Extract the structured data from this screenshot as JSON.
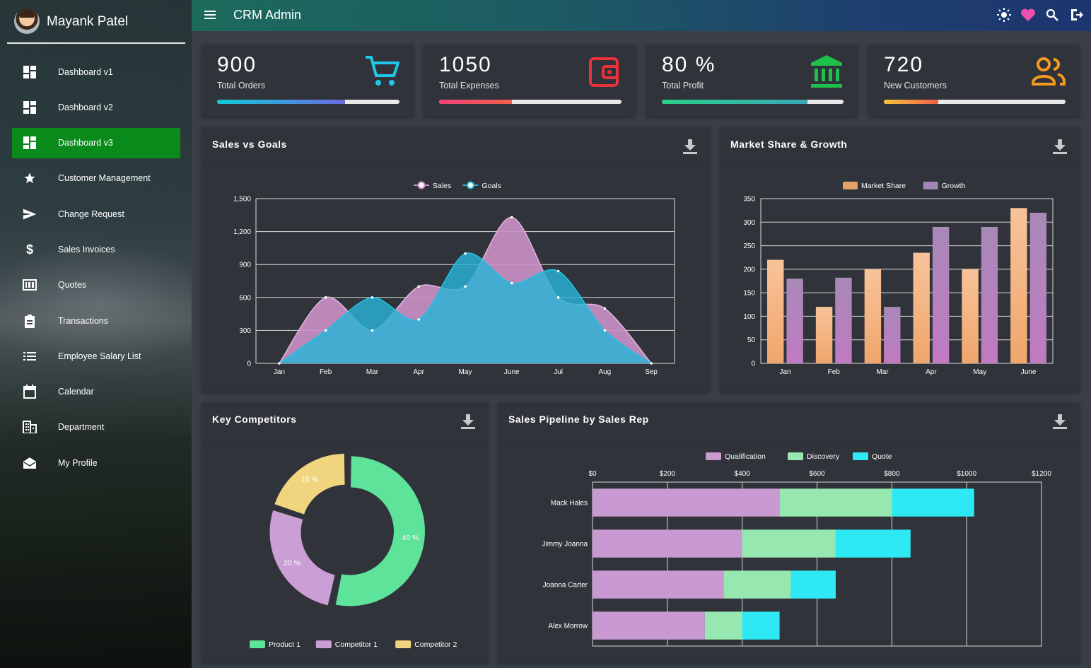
{
  "user": {
    "name": "Mayank Patel"
  },
  "app": {
    "title": "CRM Admin"
  },
  "sidebar": {
    "items": [
      {
        "label": "Dashboard v1",
        "icon": "dashboard-icon",
        "active": false
      },
      {
        "label": "Dashboard v2",
        "icon": "dashboard-icon",
        "active": false
      },
      {
        "label": "Dashboard v3",
        "icon": "dashboard-icon",
        "active": true
      },
      {
        "label": "Customer Management",
        "icon": "star-icon",
        "active": false
      },
      {
        "label": "Change Request",
        "icon": "send-icon",
        "active": false
      },
      {
        "label": "Sales Invoices",
        "icon": "dollar-icon",
        "active": false
      },
      {
        "label": "Quotes",
        "icon": "quotes-icon",
        "active": false
      },
      {
        "label": "Transactions",
        "icon": "clipboard-icon",
        "active": false
      },
      {
        "label": "Employee Salary List",
        "icon": "list-icon",
        "active": false
      },
      {
        "label": "Calendar",
        "icon": "calendar-icon",
        "active": false
      },
      {
        "label": "Department",
        "icon": "building-icon",
        "active": false
      },
      {
        "label": "My Profile",
        "icon": "mail-open-icon",
        "active": false
      }
    ]
  },
  "topbar": {
    "icons": [
      "brightness-icon",
      "heart-icon",
      "search-icon",
      "logout-icon"
    ]
  },
  "stats": [
    {
      "value": "900",
      "label": "Total Orders",
      "icon": "cart-icon",
      "icon_color": "#1ec8e6",
      "progress": 0.7,
      "gradient": [
        "#12c9d8",
        "#6a6be0"
      ]
    },
    {
      "value": "1050",
      "label": "Total Expenses",
      "icon": "wallet-icon",
      "icon_color": "#e8323c",
      "progress": 0.4,
      "gradient": [
        "#f0457a",
        "#f0604a"
      ]
    },
    {
      "value": "80 %",
      "label": "Total Profit",
      "icon": "bank-icon",
      "icon_color": "#1ec24a",
      "progress": 0.8,
      "gradient": [
        "#29d08a",
        "#3aa8b8"
      ]
    },
    {
      "value": "720",
      "label": "New Customers",
      "icon": "group-icon",
      "icon_color": "#f59a1e",
      "progress": 0.3,
      "gradient": [
        "#f7c13a",
        "#f0604a"
      ]
    }
  ],
  "cards": {
    "sales_goals": {
      "title": "Sales vs Goals"
    },
    "market_share": {
      "title": "Market Share & Growth"
    },
    "competitors": {
      "title": "Key Competitors"
    },
    "pipeline": {
      "title": "Sales Pipeline by Sales Rep"
    }
  },
  "chart_data": [
    {
      "type": "area",
      "title": "Sales vs Goals",
      "categories": [
        "Jan",
        "Feb",
        "Mar",
        "Apr",
        "May",
        "June",
        "Jul",
        "Aug",
        "Sep"
      ],
      "series": [
        {
          "name": "Sales",
          "values": [
            0,
            600,
            300,
            700,
            700,
            1330,
            600,
            500,
            0
          ],
          "color": "#c98fc6"
        },
        {
          "name": "Goals",
          "values": [
            0,
            300,
            600,
            400,
            1000,
            730,
            840,
            300,
            0
          ],
          "color": "#2ab3d6"
        }
      ],
      "ylim": [
        0,
        1500
      ],
      "yticks": [
        "0",
        "300",
        "600",
        "900",
        "1,200",
        "1,500"
      ],
      "grid": true,
      "legend": "top-center"
    },
    {
      "type": "bar",
      "title": "Market Share & Growth",
      "categories": [
        "Jan",
        "Feb",
        "Mar",
        "Apr",
        "May",
        "June"
      ],
      "series": [
        {
          "name": "Market Share",
          "values": [
            220,
            120,
            200,
            235,
            200,
            330
          ],
          "colors": [
            "#f8c39a",
            "#f0a66c"
          ]
        },
        {
          "name": "Growth",
          "values": [
            180,
            182,
            120,
            290,
            290,
            320
          ],
          "colors": [
            "#a889b8",
            "#c07ac2"
          ]
        }
      ],
      "ylim": [
        0,
        350
      ],
      "yticks": [
        "0",
        "50",
        "100",
        "150",
        "200",
        "250",
        "300",
        "350"
      ],
      "grid": true,
      "legend": "top-center"
    },
    {
      "type": "pie",
      "title": "Key Competitors",
      "labels": [
        "Product 1",
        "Competitor 1",
        "Competitor 2"
      ],
      "values": [
        40,
        20,
        15
      ],
      "display": [
        "40 %",
        "20 %",
        "15 %"
      ],
      "colors": [
        "#5ee39a",
        "#cb9ed6",
        "#f0d57e"
      ],
      "legend": "bottom"
    },
    {
      "type": "bar",
      "orientation": "horizontal",
      "stacked": true,
      "title": "Sales Pipeline by Sales Rep",
      "categories": [
        "Mack Hales",
        "Jimmy Joanna",
        "Joanna Carter",
        "Alex Morrow"
      ],
      "series": [
        {
          "name": "Qualification",
          "values": [
            500,
            400,
            350,
            300
          ],
          "color": "#c99ad2"
        },
        {
          "name": "Discovery",
          "values": [
            300,
            250,
            180,
            100
          ],
          "color": "#97e8b0"
        },
        {
          "name": "Quote",
          "values": [
            220,
            200,
            120,
            100
          ],
          "color": "#2ee9f3"
        }
      ],
      "xlim": [
        0,
        1200
      ],
      "xticks": [
        "$0",
        "$200",
        "$400",
        "$600",
        "$800",
        "$1000",
        "$1200"
      ],
      "grid": true,
      "legend": "top-center"
    }
  ]
}
